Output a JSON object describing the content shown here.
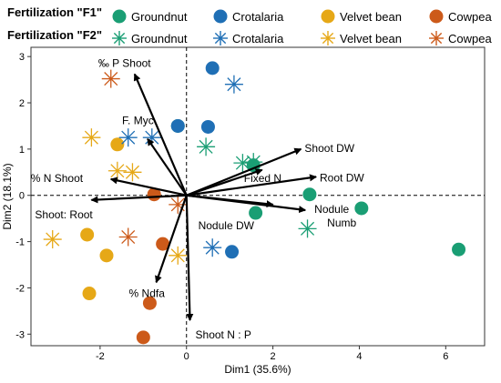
{
  "legend": {
    "row_labels": [
      "Fertilization \"F1\"",
      "Fertilization \"F2\""
    ],
    "species": [
      {
        "name": "Groundnut",
        "color": "#1a9e74"
      },
      {
        "name": "Crotalaria",
        "color": "#1f6fb5"
      },
      {
        "name": "Velvet bean",
        "color": "#e6a817"
      },
      {
        "name": "Cowpea",
        "color": "#cc5a1a"
      }
    ],
    "f1_marker": "filled-circle",
    "f2_marker": "asterisk"
  },
  "chart_data": {
    "type": "scatter",
    "subtype": "pca-biplot",
    "xlabel": "Dim1 (35.6%)",
    "ylabel": "Dim2 (18.1%)",
    "xlim": [
      -3.6,
      6.9
    ],
    "ylim": [
      -3.25,
      3.2
    ],
    "xticks": [
      -2,
      0,
      2,
      4,
      6
    ],
    "yticks": [
      -3,
      -2,
      -1,
      0,
      1,
      2,
      3
    ],
    "grid": false,
    "reference_lines": "dashed lines at x=0 and y=0",
    "legend_position": "top",
    "series": [
      {
        "name": "Groundnut",
        "fertilization": "F1",
        "marker": "circle",
        "color": "#1a9e74",
        "points": [
          [
            -0.2,
            1.5
          ],
          [
            1.55,
            0.65
          ],
          [
            2.85,
            0.02
          ],
          [
            4.05,
            -0.28
          ],
          [
            1.6,
            -0.38
          ],
          [
            6.3,
            -1.17
          ]
        ]
      },
      {
        "name": "Crotalaria",
        "fertilization": "F1",
        "marker": "circle",
        "color": "#1f6fb5",
        "points": [
          [
            0.6,
            2.75
          ],
          [
            -0.2,
            1.5
          ],
          [
            0.5,
            1.48
          ],
          [
            1.05,
            -1.22
          ]
        ]
      },
      {
        "name": "Velvet bean",
        "fertilization": "F1",
        "marker": "circle",
        "color": "#e6a817",
        "points": [
          [
            -1.6,
            1.1
          ],
          [
            -2.3,
            -0.85
          ],
          [
            -1.85,
            -1.3
          ],
          [
            -2.25,
            -2.12
          ]
        ]
      },
      {
        "name": "Cowpea",
        "fertilization": "F1",
        "marker": "circle",
        "color": "#cc5a1a",
        "points": [
          [
            -0.75,
            0.02
          ],
          [
            -0.55,
            -1.05
          ],
          [
            -0.85,
            -2.33
          ],
          [
            -1.0,
            -3.07
          ]
        ]
      },
      {
        "name": "Groundnut",
        "fertilization": "F2",
        "marker": "asterisk",
        "color": "#1a9e74",
        "points": [
          [
            1.3,
            0.7
          ],
          [
            1.55,
            0.72
          ],
          [
            0.45,
            1.05
          ],
          [
            2.8,
            -0.72
          ]
        ]
      },
      {
        "name": "Crotalaria",
        "fertilization": "F2",
        "marker": "asterisk",
        "color": "#1f6fb5",
        "points": [
          [
            1.1,
            2.4
          ],
          [
            -1.35,
            1.25
          ],
          [
            -0.8,
            1.25
          ],
          [
            0.6,
            -1.13
          ]
        ]
      },
      {
        "name": "Velvet bean",
        "fertilization": "F2",
        "marker": "asterisk",
        "color": "#e6a817",
        "points": [
          [
            -2.2,
            1.25
          ],
          [
            -1.6,
            0.53
          ],
          [
            -1.25,
            0.5
          ],
          [
            -3.1,
            -0.95
          ],
          [
            -0.2,
            -1.3
          ]
        ]
      },
      {
        "name": "Cowpea",
        "fertilization": "F2",
        "marker": "asterisk",
        "color": "#cc5a1a",
        "points": [
          [
            -1.75,
            2.52
          ],
          [
            -1.35,
            -0.9
          ],
          [
            -0.2,
            -0.2
          ]
        ]
      }
    ],
    "loadings": [
      {
        "label": "‰ P Shoot",
        "x": -1.2,
        "y": 2.62
      },
      {
        "label": "F. Myc",
        "x": -0.9,
        "y": 1.22
      },
      {
        "label": "% N Shoot",
        "x": -1.75,
        "y": 0.35
      },
      {
        "label": "Shoot: Root",
        "x": -2.2,
        "y": -0.1
      },
      {
        "label": "% Ndfa",
        "x": -0.7,
        "y": -1.88
      },
      {
        "label": "Shoot N : P",
        "x": 0.08,
        "y": -2.7
      },
      {
        "label": "Shoot DW",
        "x": 2.65,
        "y": 1.0
      },
      {
        "label": "Fixed N",
        "x": 1.75,
        "y": 0.55
      },
      {
        "label": "Root DW",
        "x": 3.0,
        "y": 0.4
      },
      {
        "label": "Nodule Numb",
        "x": 2.75,
        "y": -0.32
      },
      {
        "label": "Nodule DW",
        "x": 2.0,
        "y": -0.2
      }
    ]
  }
}
